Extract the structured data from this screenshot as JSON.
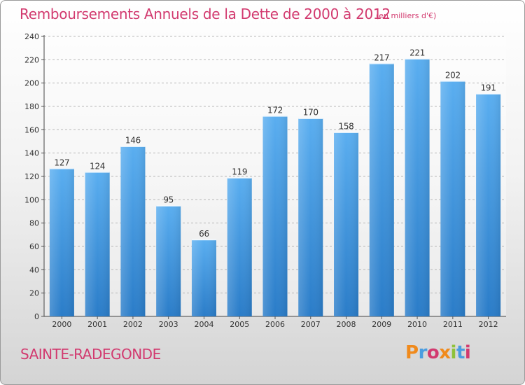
{
  "chart_data": {
    "type": "bar",
    "title": "Remboursements Annuels de la Dette de 2000 à 2012",
    "subtitle": "(en milliers d'€)",
    "categories": [
      "2000",
      "2001",
      "2002",
      "2003",
      "2004",
      "2005",
      "2006",
      "2007",
      "2008",
      "2009",
      "2010",
      "2011",
      "2012"
    ],
    "values": [
      127,
      124,
      146,
      95,
      66,
      119,
      172,
      170,
      158,
      217,
      221,
      202,
      191
    ],
    "ylim": [
      0,
      240
    ],
    "yticks": [
      0,
      20,
      40,
      60,
      80,
      100,
      120,
      140,
      160,
      180,
      200,
      220,
      240
    ],
    "grid": true,
    "legend": "none",
    "bar_color": "#4a9de0"
  },
  "footer": {
    "place": "SAINTE-RADEGONDE",
    "logo_text": "Proxiti",
    "logo_colors": [
      "#f08a1c",
      "#4a9de0",
      "#d23a6f",
      "#f08a1c",
      "#8fc23a",
      "#4a9de0",
      "#d23a6f"
    ]
  }
}
